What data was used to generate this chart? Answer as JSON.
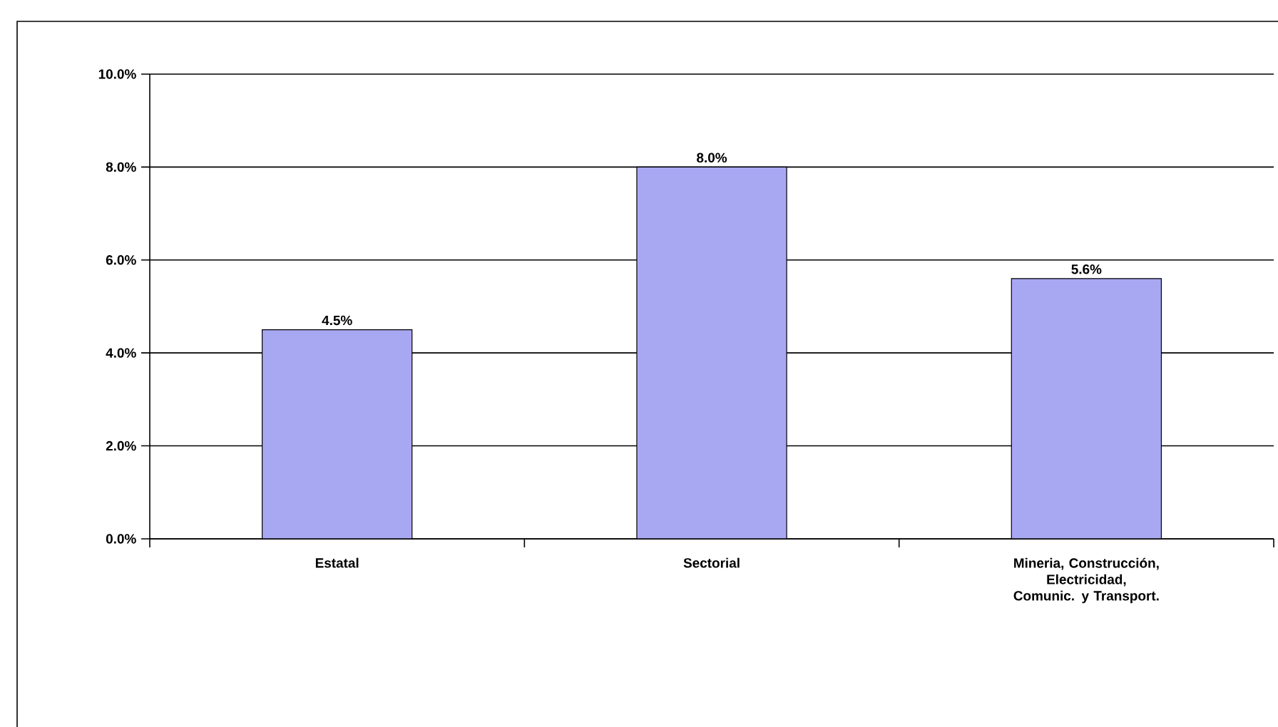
{
  "chart_data": {
    "type": "bar",
    "categories": [
      "Estatal",
      "Sectorial",
      "Mineria, Construcción, Electricidad, Comunic. y Transport."
    ],
    "values": [
      4.5,
      8.0,
      5.6
    ],
    "value_labels": [
      "4.5%",
      "8.0%",
      "5.6%"
    ],
    "color": "#a8a8f2",
    "ylim": [
      0,
      10
    ],
    "yticks": [
      {
        "value": 0,
        "label": "0.0%"
      },
      {
        "value": 2,
        "label": "2.0%"
      },
      {
        "value": 4,
        "label": "4.0%"
      },
      {
        "value": 6,
        "label": "6.0%"
      },
      {
        "value": 8,
        "label": "8.0%"
      },
      {
        "value": 10,
        "label": "10.0%"
      }
    ],
    "grid": "y"
  }
}
